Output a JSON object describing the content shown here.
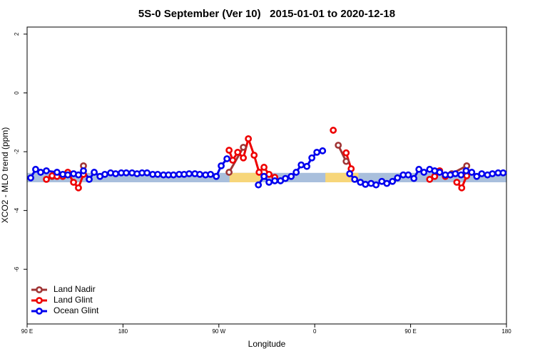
{
  "chart_data": {
    "type": "line",
    "title": "5S-0 September (Ver 10)   2015-01-01 to 2020-12-18",
    "xlabel": "Longitude",
    "ylabel": "XCO2 - MLO trend (ppm)",
    "xlim": [
      90,
      540
    ],
    "ylim": [
      -7.86,
      2.24
    ],
    "xticks": [
      {
        "value": 90,
        "label": "90 E"
      },
      180,
      {
        "value": 270,
        "label": "90 W"
      },
      {
        "value": 360,
        "label": "0"
      },
      {
        "value": 450,
        "label": "90 E"
      },
      {
        "value": 540,
        "label": "180"
      }
    ],
    "yticks": [
      -6,
      -4,
      -2,
      0,
      2
    ],
    "legend": "bottom-left",
    "band": {
      "ymin": -3.04,
      "ymax": -2.72,
      "color": "#a9bfdc"
    },
    "highlights": [
      {
        "xmin": 280,
        "xmax": 309,
        "color": "#f7d67a"
      },
      {
        "xmin": 370,
        "xmax": 401,
        "color": "#f7d67a"
      }
    ],
    "series": [
      {
        "name": "Land Nadir",
        "color": "#a03535",
        "x": [
          113.5,
          null,
          142.9,
          null,
          279.6,
          293.0,
          null,
          382.1,
          389.5,
          null,
          488.6,
          502.7
        ],
        "values": [
          -2.84,
          null,
          -2.48,
          null,
          -2.7,
          -1.85,
          null,
          -1.78,
          -2.33,
          null,
          -2.75,
          -2.48
        ]
      },
      {
        "name": "Land Glint",
        "color": "#ee0000",
        "x": [
          108.1,
          113.5,
          118.1,
          123.5,
          128.2,
          133.6,
          138.2,
          142.9,
          null,
          279.6,
          283.0,
          287.7,
          293.0,
          297.7,
          303.1,
          307.8,
          312.4,
          317.1,
          322.5,
          null,
          377.4,
          null,
          389.5,
          394.2,
          null,
          467.9,
          472.6,
          477.3,
          482.6,
          null,
          493.4,
          498.0,
          502.7
        ],
        "values": [
          -2.94,
          -2.82,
          -2.84,
          -2.84,
          -2.7,
          -3.04,
          -3.23,
          -2.77,
          null,
          -1.95,
          -2.29,
          -2.02,
          -2.21,
          -1.56,
          -2.12,
          -2.7,
          -2.53,
          -2.77,
          -2.87,
          null,
          -1.27,
          null,
          -2.04,
          -2.58,
          null,
          -2.94,
          -2.84,
          -2.65,
          -2.84,
          null,
          -3.04,
          -3.23,
          -2.82
        ]
      },
      {
        "name": "Ocean Glint",
        "color": "#0000ee",
        "x": [
          93.4,
          98.0,
          102.7,
          108.1,
          118.1,
          123.5,
          128.2,
          133.6,
          138.2,
          142.9,
          148.3,
          153.0,
          158.4,
          163.0,
          168.4,
          173.1,
          178.4,
          183.1,
          188.5,
          193.2,
          197.9,
          202.6,
          207.9,
          212.6,
          218.0,
          222.7,
          227.4,
          232.7,
          237.4,
          242.1,
          247.5,
          252.1,
          257.5,
          262.2,
          267.6,
          272.2,
          277.6,
          null,
          307.1,
          312.4,
          317.1,
          322.5,
          327.9,
          332.5,
          337.9,
          342.6,
          347.3,
          352.6,
          357.3,
          362.0,
          367.4,
          null,
          392.8,
          397.5,
          402.9,
          407.6,
          412.9,
          417.6,
          423.0,
          427.7,
          433.0,
          437.7,
          443.1,
          447.8,
          453.1,
          457.8,
          462.5,
          467.9,
          472.6,
          477.3,
          482.6,
          487.3,
          492.0,
          497.4,
          502.1,
          507.4,
          512.1,
          516.8,
          522.2,
          526.8,
          532.2,
          536.9
        ],
        "values": [
          -2.89,
          -2.6,
          -2.7,
          -2.65,
          -2.7,
          -2.77,
          -2.79,
          -2.75,
          -2.79,
          -2.65,
          -2.94,
          -2.7,
          -2.84,
          -2.77,
          -2.72,
          -2.75,
          -2.72,
          -2.72,
          -2.72,
          -2.75,
          -2.72,
          -2.72,
          -2.77,
          -2.77,
          -2.79,
          -2.79,
          -2.79,
          -2.77,
          -2.77,
          -2.75,
          -2.75,
          -2.77,
          -2.79,
          -2.77,
          -2.84,
          -2.48,
          -2.24,
          null,
          -3.13,
          -2.84,
          -3.04,
          -2.99,
          -2.99,
          -2.91,
          -2.84,
          -2.7,
          -2.45,
          -2.5,
          -2.21,
          -2.02,
          -1.97,
          null,
          -2.75,
          -2.94,
          -3.04,
          -3.11,
          -3.08,
          -3.13,
          -3.01,
          -3.08,
          -3.01,
          -2.89,
          -2.79,
          -2.79,
          -2.91,
          -2.6,
          -2.7,
          -2.6,
          -2.65,
          -2.7,
          -2.79,
          -2.79,
          -2.75,
          -2.79,
          -2.65,
          -2.7,
          -2.84,
          -2.75,
          -2.79,
          -2.75,
          -2.72,
          -2.72
        ]
      }
    ]
  }
}
